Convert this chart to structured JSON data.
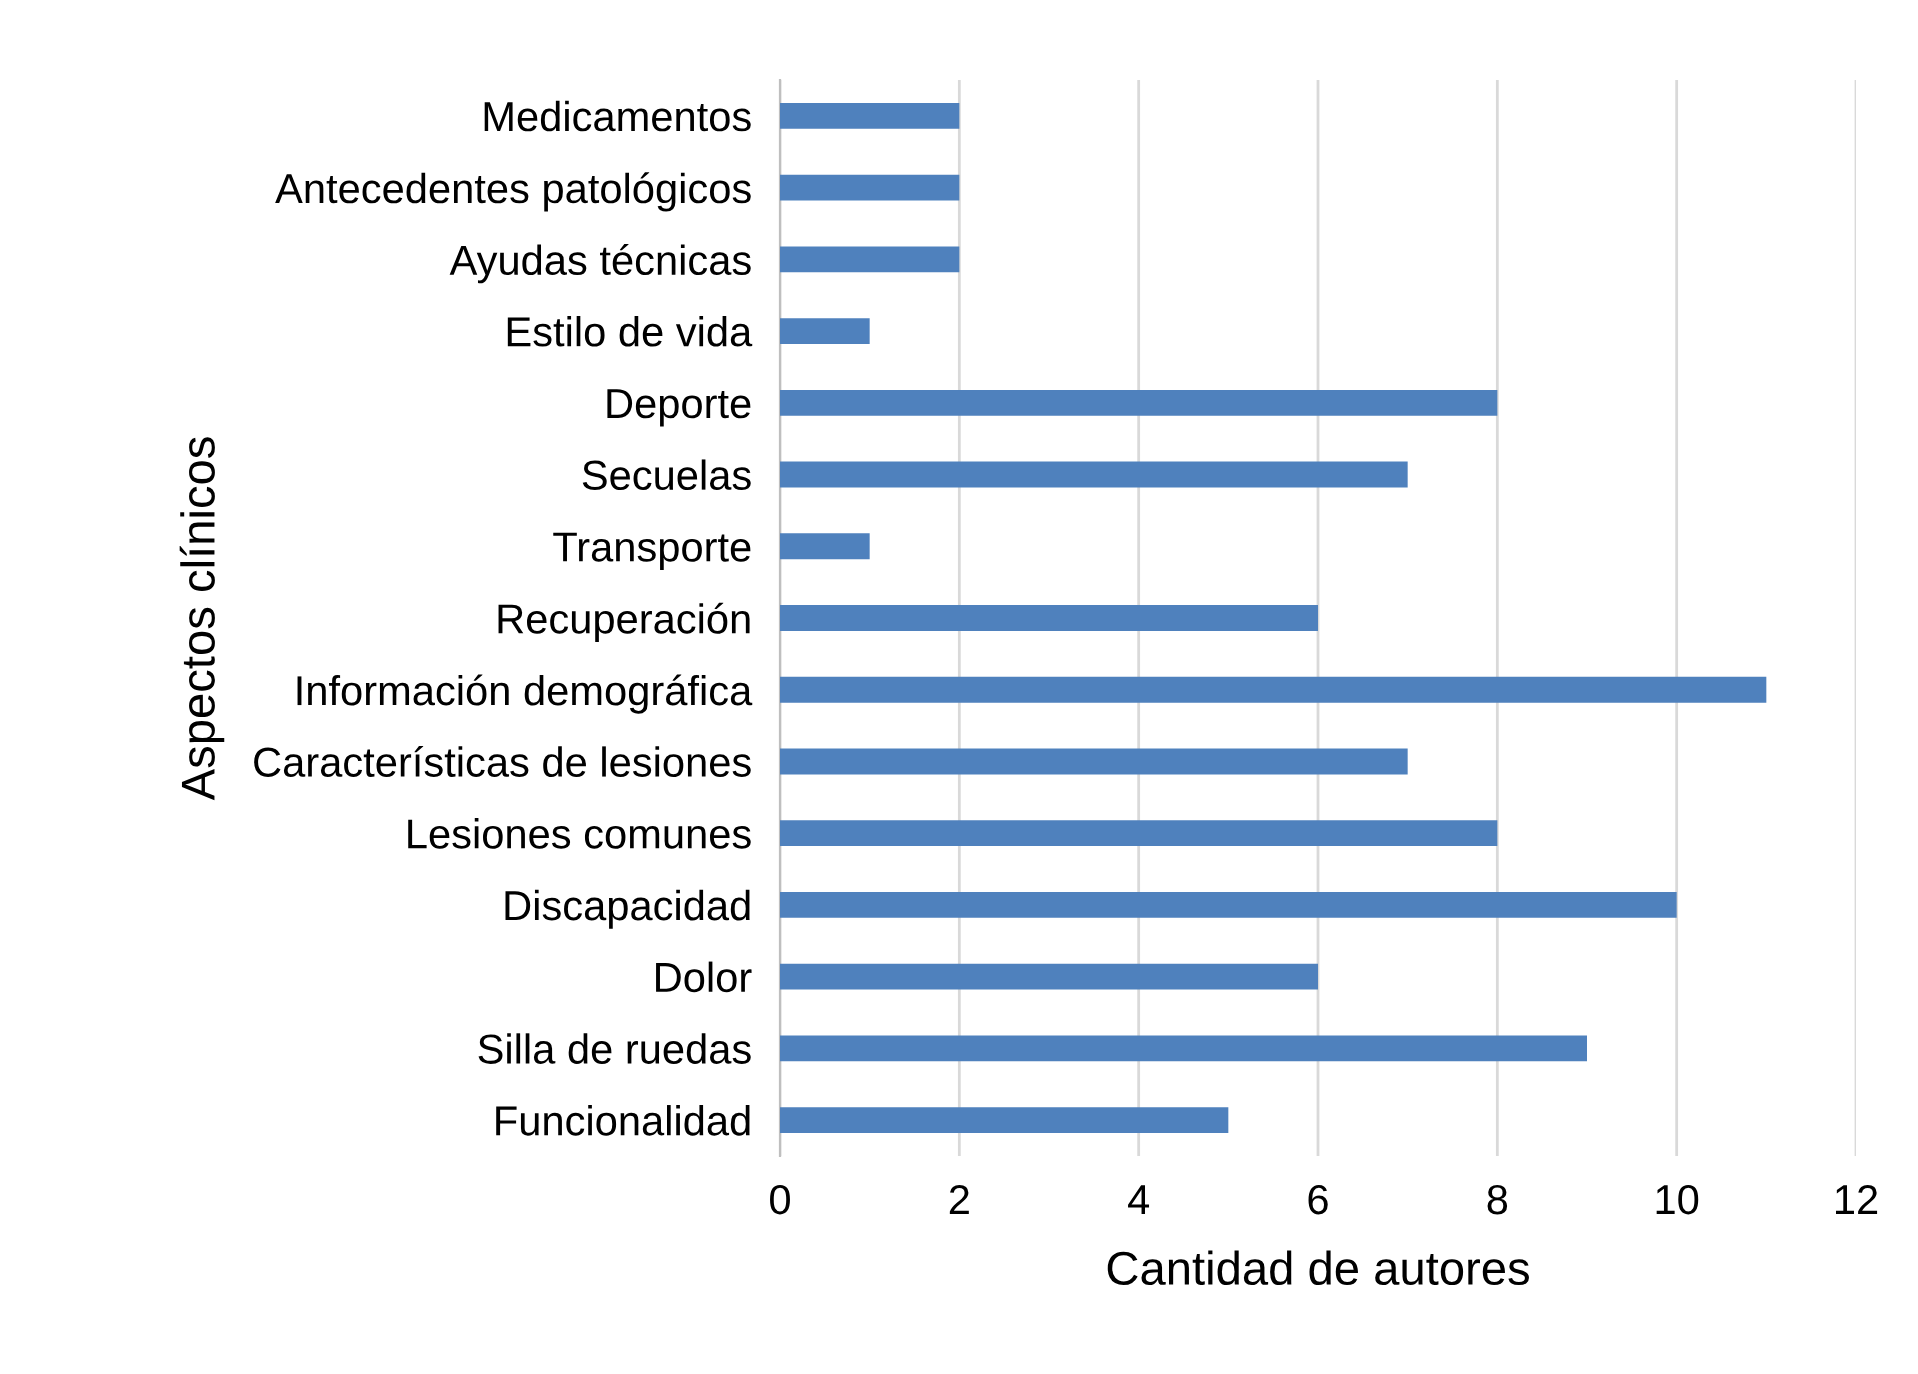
{
  "chart_data": {
    "type": "bar",
    "orientation": "horizontal",
    "xlabel": "Cantidad de autores",
    "ylabel": "Aspectos clínicos",
    "categories": [
      "Medicamentos",
      "Antecedentes patológicos",
      "Ayudas técnicas",
      "Estilo de vida",
      "Deporte",
      "Secuelas",
      "Transporte",
      "Recuperación",
      "Información demográfica",
      "Características de lesiones",
      "Lesiones comunes",
      "Discapacidad",
      "Dolor",
      "Silla de ruedas",
      "Funcionalidad"
    ],
    "values": [
      2,
      2,
      2,
      1,
      8,
      7,
      1,
      6,
      11,
      7,
      8,
      10,
      6,
      9,
      5
    ],
    "color": "#4f81bd",
    "xlim": [
      0,
      12
    ],
    "xticks": [
      0,
      2,
      4,
      6,
      8,
      10,
      12
    ],
    "grid": "x",
    "legend": false
  }
}
